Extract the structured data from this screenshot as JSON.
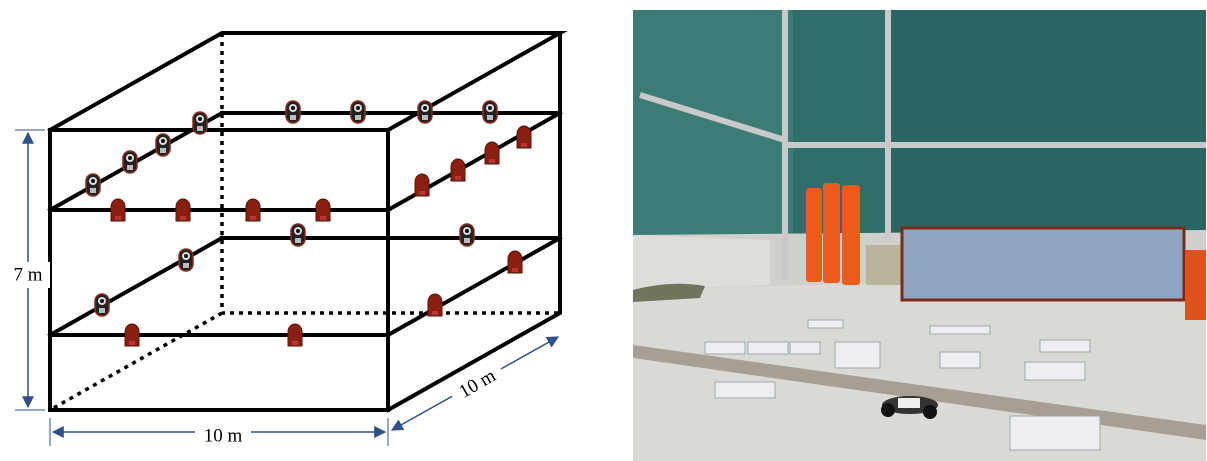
{
  "dimensions": {
    "height": "7 m",
    "width": "10 m",
    "depth": "10 m"
  }
}
